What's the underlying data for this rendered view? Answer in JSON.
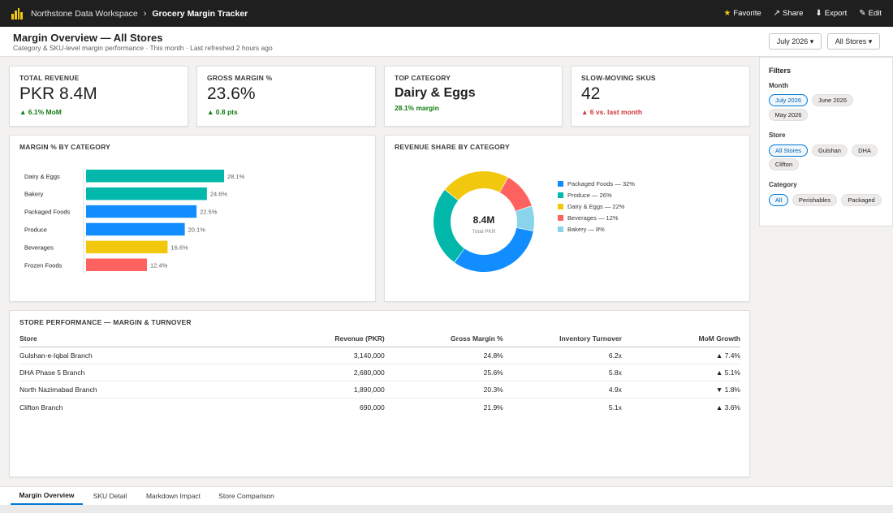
{
  "topbar": {
    "workspace": "Northstone Data Workspace",
    "separator": "›",
    "report": "Grocery Margin Tracker",
    "actions": [
      {
        "icon": "star-icon",
        "glyph": "★",
        "label": "Favorite"
      },
      {
        "icon": "share-icon",
        "glyph": "↗",
        "label": "Share"
      },
      {
        "icon": "export-icon",
        "glyph": "⬇",
        "label": "Export"
      },
      {
        "icon": "edit-icon",
        "glyph": "✎",
        "label": "Edit"
      }
    ]
  },
  "header": {
    "title": "Margin Overview — All Stores",
    "subtitle": "Category & SKU-level margin performance · This month · Last refreshed 2 hours ago",
    "month_dropdown": "July 2026 ▾",
    "store_dropdown": "All Stores ▾"
  },
  "kpis": [
    {
      "label": "TOTAL REVENUE",
      "value": "PKR 8.4M",
      "delta": "▲ 6.1% MoM",
      "trend": "up"
    },
    {
      "label": "GROSS MARGIN %",
      "value": "23.6%",
      "delta": "▲ 0.8 pts",
      "trend": "up"
    },
    {
      "label": "TOP CATEGORY",
      "value": "Dairy & Eggs",
      "delta": "28.1% margin",
      "trend": "up"
    },
    {
      "label": "SLOW-MOVING SKUS",
      "value": "42",
      "delta": "▲ 6 vs. last month",
      "trend": "down"
    }
  ],
  "chart_data": [
    {
      "type": "bar",
      "orientation": "horizontal",
      "title": "MARGIN % BY CATEGORY",
      "categories": [
        "Dairy & Eggs",
        "Bakery",
        "Packaged Foods",
        "Produce",
        "Beverages",
        "Frozen Foods"
      ],
      "values": [
        28.1,
        24.6,
        22.5,
        20.1,
        16.6,
        12.4
      ],
      "value_labels": [
        "28.1%",
        "24.6%",
        "22.5%",
        "20.1%",
        "16.6%",
        "12.4%"
      ],
      "colors": [
        "#01b8aa",
        "#01b8aa",
        "#118dff",
        "#118dff",
        "#f2c80f",
        "#fd625e"
      ],
      "xlim": [
        0,
        28.1
      ],
      "grid": false
    },
    {
      "type": "pie",
      "subtype": "donut",
      "title": "REVENUE SHARE BY CATEGORY",
      "center_value": "8.4M",
      "center_label": "Total PKR",
      "categories": [
        "Packaged Foods",
        "Produce",
        "Dairy & Eggs",
        "Beverages",
        "Bakery"
      ],
      "values": [
        32,
        26,
        22,
        12,
        8
      ],
      "legend_labels": [
        "Packaged Foods — 32%",
        "Produce — 26%",
        "Dairy & Eggs — 22%",
        "Beverages — 12%",
        "Bakery — 8%"
      ],
      "colors": [
        "#118dff",
        "#01b8aa",
        "#f2c80f",
        "#fd625e",
        "#8ad4eb"
      ],
      "legend_position": "right"
    }
  ],
  "store_table": {
    "title": "STORE PERFORMANCE — MARGIN & TURNOVER",
    "columns": [
      "Store",
      "Revenue (PKR)",
      "Gross Margin %",
      "Inventory Turnover",
      "MoM Growth"
    ],
    "rows": [
      {
        "store": "Gulshan-e-Iqbal Branch",
        "revenue": "3,140,000",
        "margin": "24.8%",
        "turnover": "6.2x",
        "growth": "▲ 7.4%",
        "trend": "up"
      },
      {
        "store": "DHA Phase 5 Branch",
        "revenue": "2,680,000",
        "margin": "25.6%",
        "turnover": "5.8x",
        "growth": "▲ 5.1%",
        "trend": "up"
      },
      {
        "store": "North Nazimabad Branch",
        "revenue": "1,890,000",
        "margin": "20.3%",
        "turnover": "4.9x",
        "growth": "▼ 1.8%",
        "trend": "down"
      },
      {
        "store": "Clifton Branch",
        "revenue": "690,000",
        "margin": "21.9%",
        "turnover": "5.1x",
        "growth": "▲ 3.6%",
        "trend": "up"
      }
    ]
  },
  "filters": {
    "title": "Filters",
    "groups": [
      {
        "label": "Month",
        "options": [
          "July 2026",
          "June 2026",
          "May 2026"
        ],
        "selected": "July 2026"
      },
      {
        "label": "Store",
        "options": [
          "All Stores",
          "Gulshan",
          "DHA",
          "Clifton"
        ],
        "selected": "All Stores"
      },
      {
        "label": "Category",
        "options": [
          "All",
          "Perishables",
          "Packaged"
        ],
        "selected": "All"
      }
    ]
  },
  "tabs": [
    {
      "label": "Margin Overview",
      "active": true
    },
    {
      "label": "SKU Detail",
      "active": false
    },
    {
      "label": "Markdown Impact",
      "active": false
    },
    {
      "label": "Store Comparison",
      "active": false
    }
  ]
}
